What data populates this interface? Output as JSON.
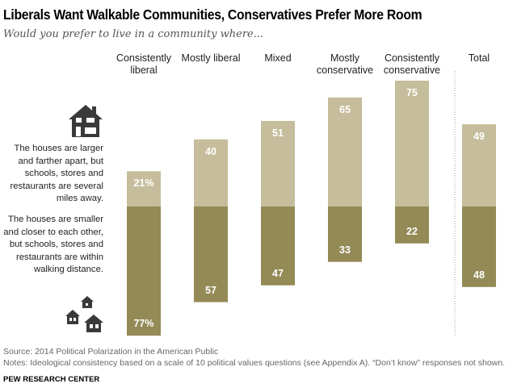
{
  "title": "Liberals Want Walkable Communities, Conservatives Prefer More Room",
  "subtitle": "Would you prefer to live in a community where...",
  "legend": {
    "top": "The houses are larger and farther apart, but schools, stores and restaurants are several miles away.",
    "bottom": "The houses are smaller and closer to each other, but schools, stores and restaurants are within walking distance."
  },
  "chart_data": {
    "type": "bar",
    "stacked": "diverging",
    "categories": [
      "Consistently liberal",
      "Mostly liberal",
      "Mixed",
      "Mostly conservative",
      "Consistently conservative",
      "Total"
    ],
    "series": [
      {
        "name": "The houses are larger and farther apart, but schools, stores and restaurants are several miles away.",
        "values": [
          21,
          40,
          51,
          65,
          75,
          49
        ],
        "labels": [
          "21%",
          "40",
          "51",
          "65",
          "75",
          "49"
        ],
        "color": "#c5bd9b"
      },
      {
        "name": "The houses are smaller and closer to each other, but schools, stores and restaurants are within walking distance.",
        "values": [
          77,
          57,
          47,
          33,
          22,
          48
        ],
        "labels": [
          "77%",
          "57",
          "47",
          "33",
          "22",
          "48"
        ],
        "color": "#938a56"
      }
    ]
  },
  "footer": {
    "source": "Source: 2014 Political Polarization in the American Public",
    "notes": "Notes: Ideological consistency based on a scale of 10 political values questions (see Appendix A). “Don’t know” responses not shown.",
    "brand": "PEW RESEARCH CENTER"
  }
}
